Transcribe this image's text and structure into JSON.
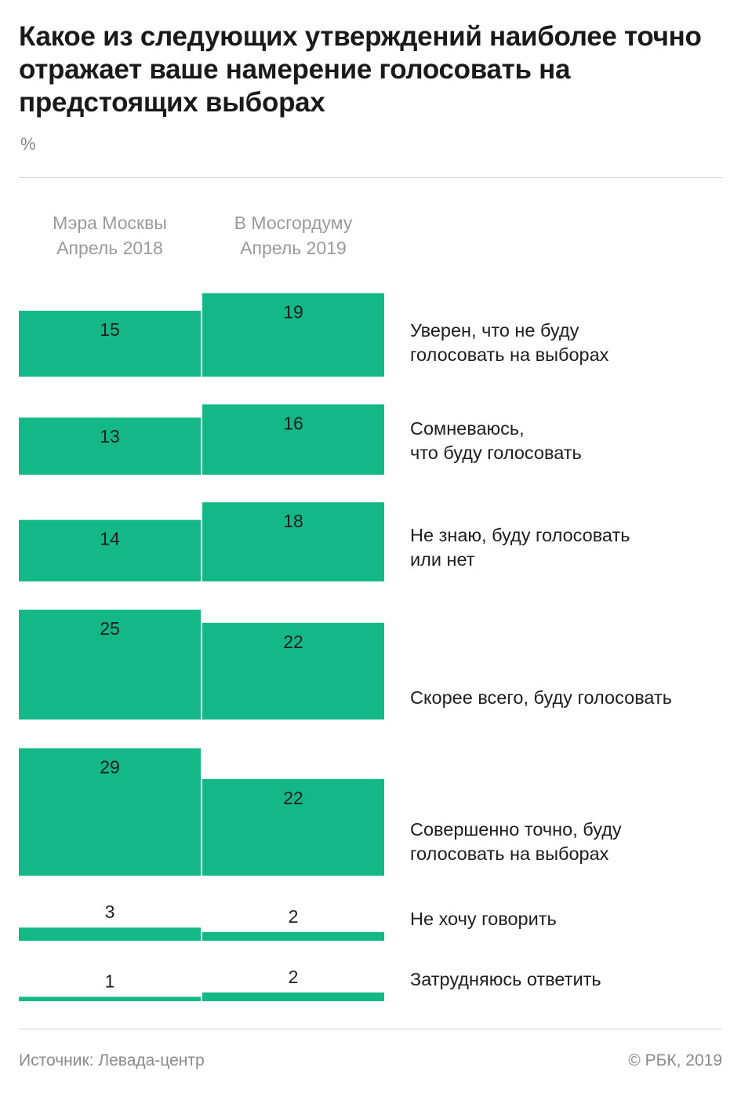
{
  "title": "Какое из следующих утверждений наиболее точно отражает ваше намерение голосовать на предстоящих выборах",
  "unit": "%",
  "source": "Источник: Левада-центр",
  "copyright": "© РБК, 2019",
  "colors": {
    "bar": "#14b886"
  },
  "chart_data": {
    "type": "bar",
    "orientation": "vertical-grouped",
    "series": [
      {
        "name": "Мэра Москвы\nАпрель 2018",
        "line1": "Мэра Москвы",
        "line2": "Апрель 2018",
        "values": [
          15,
          13,
          14,
          25,
          29,
          3,
          1
        ]
      },
      {
        "name": "В Мосгордуму\nАпрель 2019",
        "line1": "В Мосгордуму",
        "line2": "Апрель 2019",
        "values": [
          19,
          16,
          18,
          22,
          22,
          2,
          2
        ]
      }
    ],
    "categories": [
      "Уверен, что не буду\nголосовать на выборах",
      "Сомневаюсь,\nчто буду голосовать",
      "Не знаю, буду голосовать\nили нет",
      "Скорее всего, буду голосовать",
      "Совершенно точно, буду\nголосовать на выборах",
      "Не хочу говорить",
      "Затрудняюсь ответить"
    ],
    "data_labels": true,
    "grid": false,
    "legend": "column-headers"
  }
}
